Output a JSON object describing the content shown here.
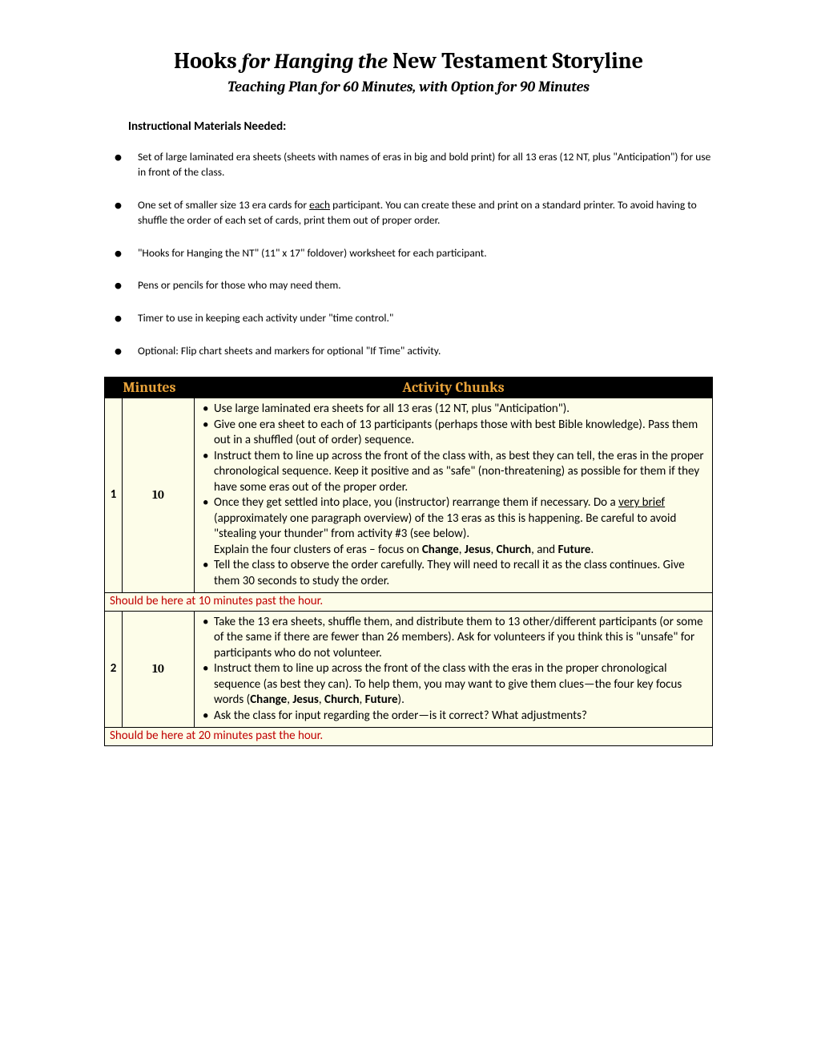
{
  "title_prefix": "Hooks",
  "title_mid": "for Hanging the",
  "title_suffix": "New Testament Storyline",
  "subtitle": "Teaching Plan for 60 Minutes, with Option for 90 Minutes",
  "materials_heading": "Instructional Materials Needed:",
  "materials": [
    {
      "pre": "Set of large laminated era sheets (sheets with names of eras in big and bold print) for all 13 eras (12 NT, plus \"Anticipation\") for use in front of the class."
    },
    {
      "pre": "One set of smaller size 13 era cards for ",
      "u": "each",
      "post": " participant.  You can create these and print on a standard printer.  To avoid having to shuffle the order of each set of cards, print them out of proper order."
    },
    {
      "pre": "\"Hooks for Hanging the NT\" (11\" x 17\" foldover) worksheet for each participant."
    },
    {
      "pre": "Pens or pencils for those who may need them."
    },
    {
      "pre": "Timer to use in keeping each activity under \"time control.\""
    },
    {
      "pre": "Optional: Flip chart sheets and markers for optional \"If Time\" activity."
    }
  ],
  "headers": {
    "minutes": "Minutes",
    "activity": "Activity Chunks"
  },
  "row1": {
    "num": "1",
    "min": "10",
    "a": "Use large laminated era sheets for all 13 eras (12 NT, plus \"Anticipation\").",
    "b": "Give one era sheet to each of 13 participants (perhaps those with best Bible knowledge).  Pass them out in a shuffled (out of order) sequence.",
    "c": "Instruct them to line up across the front of the class with, as best they can tell, the eras in the proper chronological sequence.  Keep it positive and as \"safe\" (non-threatening) as possible for them if they have some eras out of the proper order.",
    "d_pre": "Once they get settled into place, you (instructor) rearrange them if necessary.  Do a ",
    "d_u": "very brief",
    "d_post": " (approximately one paragraph overview) of the 13 eras as this is happening.  Be careful to avoid \"stealing your thunder\" from activity #3 (see below).",
    "e_pre": "Explain the four clusters of eras – focus on ",
    "e_b1": "Change",
    "e_s1": ", ",
    "e_b2": "Jesus",
    "e_s2": ", ",
    "e_b3": "Church",
    "e_s3": ", and ",
    "e_b4": "Future",
    "e_post": ".",
    "f": "Tell the class to observe the order carefully.  They will need to recall it as the class continues.  Give them 30 seconds to study the order."
  },
  "time1": "Should be here at 10 minutes past the hour.",
  "row2": {
    "num": "2",
    "min": "10",
    "a": "Take the 13 era sheets, shuffle them, and distribute them to 13 other/different participants (or some of the same if there are fewer than 26 members).  Ask for volunteers if you think this is \"unsafe\" for participants who do not volunteer.",
    "b_pre": "Instruct them to line up across the front of the class with the eras in the proper chronological sequence (as best they can).  To help them, you may want to give them clues—the four key focus words (",
    "b_b1": "Change",
    "b_s1": ", ",
    "b_b2": "Jesus",
    "b_s2": ", ",
    "b_b3": "Church",
    "b_s3": ", ",
    "b_b4": "Future",
    "b_post": ").",
    "c": "Ask the class for input regarding the order—is it correct?  What adjustments?"
  },
  "time2": "Should be here at 20 minutes past the hour.",
  "colors": {
    "header_bg": "#000000",
    "header_text": "#e9a33a",
    "cell_bg": "#fdfde9",
    "timecheck_text": "#c00000"
  }
}
